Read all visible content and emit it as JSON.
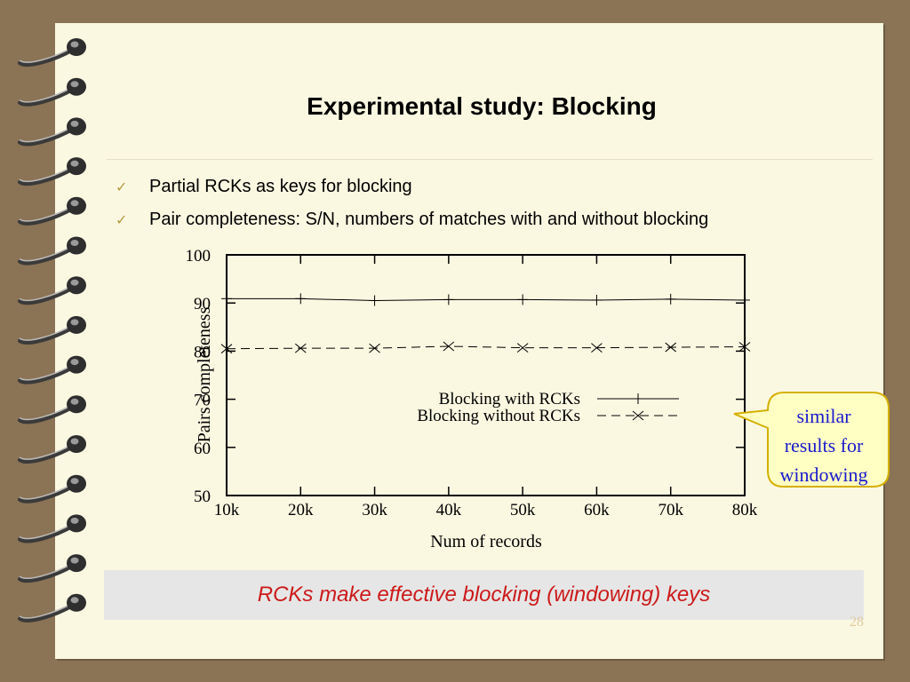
{
  "slide": {
    "title": "Experimental study: Blocking",
    "bullets": [
      "Partial RCKs as keys for blocking",
      "Pair completeness: S/N, numbers of matches with and without blocking"
    ],
    "callout": [
      "similar",
      "results for",
      "windowing"
    ],
    "banner": "RCKs make effective blocking (windowing) keys",
    "page_number": "28"
  },
  "icons": {
    "bullet": "checkmark-icon",
    "binding": "spiral-ring-icon"
  },
  "colors": {
    "background": "#8b7355",
    "page": "#fbf8e2",
    "bullet": "#b59a40",
    "callout_text": "#1a1acc",
    "callout_fill": "#ffffc4",
    "callout_border": "#d4b000",
    "banner_text": "#cc1a1a",
    "banner_fill": "#e6e6e6"
  },
  "chart_data": {
    "type": "line",
    "x": [
      "10k",
      "20k",
      "30k",
      "40k",
      "50k",
      "60k",
      "70k",
      "80k"
    ],
    "xlabel": "Num of records",
    "ylabel": "Pairs completeness",
    "ylim": [
      50,
      100
    ],
    "yticks": [
      "50",
      "60",
      "70",
      "80",
      "90",
      "100"
    ],
    "legend_position": "center-right",
    "series": [
      {
        "name": "Blocking with RCKs",
        "marker": "plus",
        "dash": "solid",
        "values": [
          90.9,
          90.9,
          90.5,
          90.7,
          90.7,
          90.6,
          90.8,
          90.6
        ]
      },
      {
        "name": "Blocking without RCKs",
        "marker": "cross",
        "dash": "dashed",
        "values": [
          80.5,
          80.6,
          80.6,
          81.0,
          80.7,
          80.7,
          80.8,
          80.9
        ]
      }
    ]
  }
}
